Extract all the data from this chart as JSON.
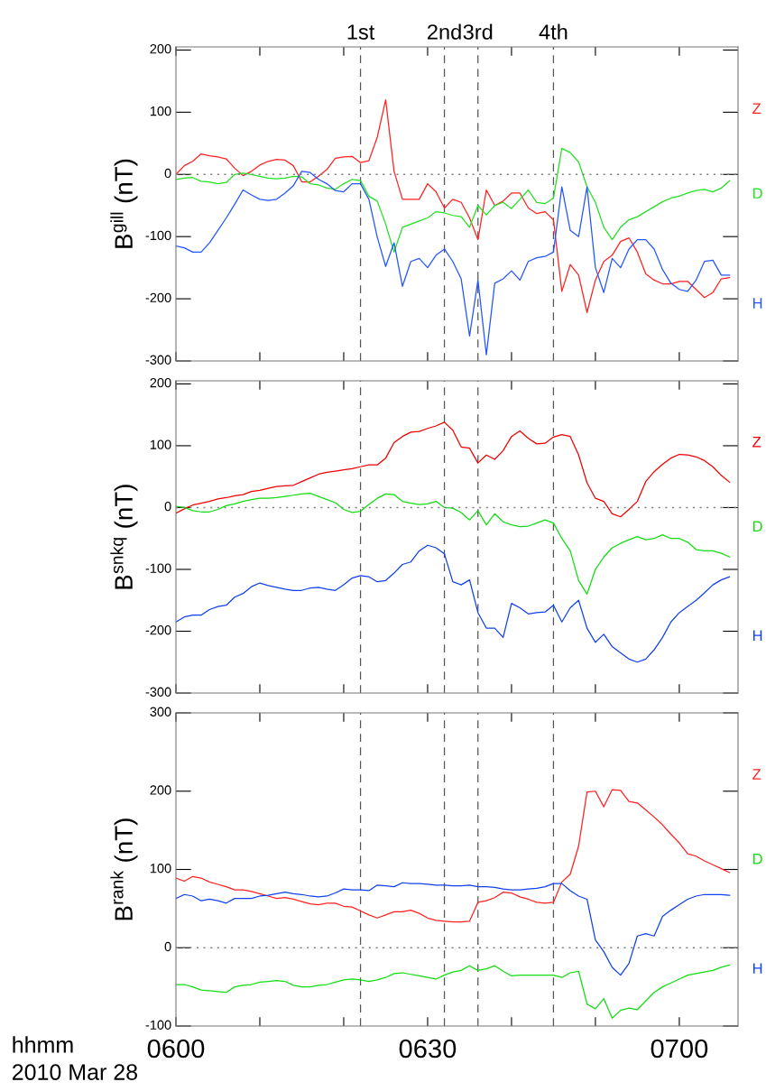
{
  "chart_data": [
    {
      "type": "line",
      "ylabel": "B$^{gill}$ (nT)",
      "tick_labels": "y",
      "x": [
        "2010-03-28T06:00",
        "2010-03-28T06:01",
        "2010-03-28T06:02",
        "2010-03-28T06:03",
        "2010-03-28T06:04",
        "2010-03-28T06:05",
        "2010-03-28T06:06",
        "2010-03-28T06:07",
        "2010-03-28T06:08",
        "2010-03-28T06:09",
        "2010-03-28T06:10",
        "2010-03-28T06:11",
        "2010-03-28T06:12",
        "2010-03-28T06:13",
        "2010-03-28T06:14",
        "2010-03-28T06:15",
        "2010-03-28T06:16",
        "2010-03-28T06:17",
        "2010-03-28T06:18",
        "2010-03-28T06:19",
        "2010-03-28T06:20",
        "2010-03-28T06:21",
        "2010-03-28T06:22",
        "2010-03-28T06:23",
        "2010-03-28T06:24",
        "2010-03-28T06:25",
        "2010-03-28T06:26",
        "2010-03-28T06:27",
        "2010-03-28T06:28",
        "2010-03-28T06:29",
        "2010-03-28T06:30",
        "2010-03-28T06:31",
        "2010-03-28T06:32",
        "2010-03-28T06:33",
        "2010-03-28T06:34",
        "2010-03-28T06:35",
        "2010-03-28T06:36",
        "2010-03-28T06:37",
        "2010-03-28T06:38",
        "2010-03-28T06:39",
        "2010-03-28T06:40",
        "2010-03-28T06:41",
        "2010-03-28T06:42",
        "2010-03-28T06:43",
        "2010-03-28T06:44",
        "2010-03-28T06:45",
        "2010-03-28T06:46",
        "2010-03-28T06:47",
        "2010-03-28T06:48",
        "2010-03-28T06:49",
        "2010-03-28T06:50",
        "2010-03-28T06:51",
        "2010-03-28T06:52",
        "2010-03-28T06:53",
        "2010-03-28T06:54",
        "2010-03-28T06:55",
        "2010-03-28T06:56",
        "2010-03-28T06:57",
        "2010-03-28T06:58",
        "2010-03-28T06:59",
        "2010-03-28T07:00",
        "2010-03-28T07:01",
        "2010-03-28T07:02",
        "2010-03-28T07:03",
        "2010-03-28T07:04",
        "2010-03-28T07:05",
        "2010-03-28T07:06"
      ],
      "series": [
        {
          "name": "Z",
          "color": "#ff2020",
          "values": [
            0,
            14,
            21,
            33,
            30,
            28,
            25,
            10,
            -2,
            5,
            15,
            21,
            24,
            23,
            14,
            -12,
            -12,
            -3,
            8,
            26,
            28,
            29,
            19,
            22,
            60,
            120,
            5,
            -40,
            -40,
            -40,
            -15,
            -28,
            -54,
            -40,
            -45,
            -70,
            -105,
            -25,
            -50,
            -43,
            -30,
            -30,
            -54,
            -63,
            -60,
            -73,
            -188,
            -145,
            -162,
            -222,
            -170,
            -140,
            -130,
            -108,
            -102,
            -125,
            -160,
            -170,
            -176,
            -176,
            -172,
            -172,
            -185,
            -198,
            -190,
            -168,
            -166
          ]
        },
        {
          "name": "D",
          "color": "#22e022",
          "values": [
            -8,
            -6,
            -5,
            -11,
            -12,
            -15,
            -13,
            0,
            2,
            0,
            -3,
            -6,
            -7,
            -6,
            -3,
            -4,
            -15,
            -17,
            -22,
            -24,
            -15,
            -8,
            -10,
            -35,
            -43,
            -80,
            -125,
            -85,
            -80,
            -75,
            -70,
            -60,
            -62,
            -66,
            -68,
            -85,
            -50,
            -65,
            -50,
            -45,
            -55,
            -40,
            -25,
            -45,
            -47,
            -38,
            42,
            35,
            20,
            -20,
            -45,
            -85,
            -105,
            -85,
            -73,
            -68,
            -60,
            -52,
            -44,
            -38,
            -35,
            -30,
            -26,
            -24,
            -28,
            -22,
            -10
          ]
        },
        {
          "name": "H",
          "color": "#2255ff",
          "values": [
            -115,
            -118,
            -125,
            -125,
            -110,
            -90,
            -70,
            -48,
            -25,
            -33,
            -40,
            -42,
            -40,
            -30,
            -18,
            5,
            3,
            -8,
            -15,
            -26,
            -28,
            -15,
            -15,
            -40,
            -101,
            -148,
            -110,
            -180,
            -140,
            -135,
            -150,
            -130,
            -120,
            -140,
            -168,
            -260,
            -170,
            -290,
            -175,
            -168,
            -155,
            -170,
            -140,
            -134,
            -132,
            -125,
            -20,
            -90,
            -100,
            -20,
            -150,
            -190,
            -135,
            -150,
            -120,
            -105,
            -105,
            -120,
            -153,
            -175,
            -185,
            -188,
            -170,
            -140,
            -138,
            -162,
            -162
          ]
        }
      ],
      "xlim": [
        "2010-03-28T06:00",
        "2010-03-28T07:07"
      ],
      "ylim": [
        -300,
        205
      ],
      "xticks": [
        {
          "value": "2010-03-28T06:00",
          "label": null
        },
        {
          "value": "2010-03-28T06:10",
          "label": null
        },
        {
          "value": "2010-03-28T06:20",
          "label": null
        },
        {
          "value": "2010-03-28T06:30",
          "label": null
        },
        {
          "value": "2010-03-28T06:40",
          "label": null
        },
        {
          "value": "2010-03-28T06:50",
          "label": null
        },
        {
          "value": "2010-03-28T07:00",
          "label": null
        }
      ],
      "yticks": [
        -300,
        -200,
        -100,
        0,
        100,
        200
      ],
      "ref_lines": [
        {
          "axis": "y",
          "value": 0,
          "color": "#808080",
          "line_style": "dotted"
        },
        {
          "axis": "x",
          "value": "2010-03-28T06:22",
          "label": "1st",
          "color": "#555555",
          "line_style": "dashed"
        },
        {
          "axis": "x",
          "value": "2010-03-28T06:32",
          "label": "2nd",
          "color": "#555555",
          "line_style": "dashed"
        },
        {
          "axis": "x",
          "value": "2010-03-28T06:36",
          "label": "3rd",
          "color": "#555555",
          "line_style": "dashed"
        },
        {
          "axis": "x",
          "value": "2010-03-28T06:45",
          "label": "4th",
          "color": "#555555",
          "line_style": "dashed"
        }
      ]
    },
    {
      "type": "line",
      "ylabel": "B$^{snkq}$ (nT)",
      "tick_labels": "y",
      "x": [
        "2010-03-28T06:00",
        "2010-03-28T06:01",
        "2010-03-28T06:02",
        "2010-03-28T06:03",
        "2010-03-28T06:04",
        "2010-03-28T06:05",
        "2010-03-28T06:06",
        "2010-03-28T06:07",
        "2010-03-28T06:08",
        "2010-03-28T06:09",
        "2010-03-28T06:10",
        "2010-03-28T06:11",
        "2010-03-28T06:12",
        "2010-03-28T06:13",
        "2010-03-28T06:14",
        "2010-03-28T06:15",
        "2010-03-28T06:16",
        "2010-03-28T06:17",
        "2010-03-28T06:18",
        "2010-03-28T06:19",
        "2010-03-28T06:20",
        "2010-03-28T06:21",
        "2010-03-28T06:22",
        "2010-03-28T06:23",
        "2010-03-28T06:24",
        "2010-03-28T06:25",
        "2010-03-28T06:26",
        "2010-03-28T06:27",
        "2010-03-28T06:28",
        "2010-03-28T06:29",
        "2010-03-28T06:30",
        "2010-03-28T06:31",
        "2010-03-28T06:32",
        "2010-03-28T06:33",
        "2010-03-28T06:34",
        "2010-03-28T06:35",
        "2010-03-28T06:36",
        "2010-03-28T06:37",
        "2010-03-28T06:38",
        "2010-03-28T06:39",
        "2010-03-28T06:40",
        "2010-03-28T06:41",
        "2010-03-28T06:42",
        "2010-03-28T06:43",
        "2010-03-28T06:44",
        "2010-03-28T06:45",
        "2010-03-28T06:46",
        "2010-03-28T06:47",
        "2010-03-28T06:48",
        "2010-03-28T06:49",
        "2010-03-28T06:50",
        "2010-03-28T06:51",
        "2010-03-28T06:52",
        "2010-03-28T06:53",
        "2010-03-28T06:54",
        "2010-03-28T06:55",
        "2010-03-28T06:56",
        "2010-03-28T06:57",
        "2010-03-28T06:58",
        "2010-03-28T06:59",
        "2010-03-28T07:00",
        "2010-03-28T07:01",
        "2010-03-28T07:02",
        "2010-03-28T07:03",
        "2010-03-28T07:04",
        "2010-03-28T07:05",
        "2010-03-28T07:06"
      ],
      "series": [
        {
          "name": "Z",
          "color": "#ee0000",
          "values": [
            -9,
            -2,
            4,
            7,
            10,
            14,
            16,
            19,
            21,
            26,
            28,
            31,
            34,
            35,
            36,
            42,
            48,
            54,
            57,
            59,
            61,
            63,
            66,
            69,
            69,
            80,
            105,
            115,
            122,
            123,
            128,
            132,
            138,
            125,
            98,
            96,
            72,
            85,
            78,
            92,
            115,
            124,
            112,
            103,
            104,
            114,
            118,
            115,
            85,
            40,
            15,
            10,
            -10,
            -15,
            -3,
            10,
            42,
            58,
            70,
            80,
            86,
            85,
            82,
            76,
            66,
            52,
            41
          ]
        },
        {
          "name": "D",
          "color": "#11dd11",
          "values": [
            2,
            0,
            -5,
            -7,
            -7,
            -3,
            3,
            6,
            10,
            13,
            15,
            15,
            16,
            18,
            20,
            22,
            23,
            18,
            13,
            8,
            -3,
            -8,
            -6,
            5,
            15,
            22,
            21,
            10,
            7,
            5,
            6,
            10,
            0,
            -1,
            -8,
            -20,
            -5,
            -28,
            -10,
            -23,
            -28,
            -31,
            -30,
            -25,
            -20,
            -25,
            -50,
            -70,
            -118,
            -140,
            -100,
            -80,
            -65,
            -58,
            -52,
            -47,
            -52,
            -50,
            -44,
            -50,
            -50,
            -56,
            -68,
            -70,
            -70,
            -74,
            -80
          ]
        },
        {
          "name": "H",
          "color": "#1040ee",
          "values": [
            -185,
            -177,
            -174,
            -174,
            -165,
            -160,
            -158,
            -145,
            -139,
            -128,
            -122,
            -126,
            -129,
            -132,
            -134,
            -134,
            -130,
            -129,
            -132,
            -134,
            -125,
            -114,
            -110,
            -112,
            -120,
            -118,
            -106,
            -92,
            -88,
            -70,
            -61,
            -65,
            -75,
            -120,
            -125,
            -117,
            -170,
            -195,
            -195,
            -210,
            -155,
            -162,
            -172,
            -170,
            -169,
            -158,
            -185,
            -162,
            -150,
            -195,
            -218,
            -205,
            -225,
            -235,
            -245,
            -250,
            -245,
            -230,
            -210,
            -185,
            -170,
            -160,
            -150,
            -138,
            -125,
            -117,
            -112
          ]
        }
      ],
      "xlim": [
        "2010-03-28T06:00",
        "2010-03-28T07:07"
      ],
      "ylim": [
        -300,
        205
      ],
      "xticks": [
        {
          "value": "2010-03-28T06:00",
          "label": null
        },
        {
          "value": "2010-03-28T06:10",
          "label": null
        },
        {
          "value": "2010-03-28T06:20",
          "label": null
        },
        {
          "value": "2010-03-28T06:30",
          "label": null
        },
        {
          "value": "2010-03-28T06:40",
          "label": null
        },
        {
          "value": "2010-03-28T06:50",
          "label": null
        },
        {
          "value": "2010-03-28T07:00",
          "label": null
        }
      ],
      "yticks": [
        -300,
        -200,
        -100,
        0,
        100,
        200
      ],
      "ref_lines": [
        {
          "axis": "y",
          "value": 0,
          "color": "#808080",
          "line_style": "dotted"
        },
        {
          "axis": "x",
          "value": "2010-03-28T06:22",
          "color": "#555555",
          "line_style": "dashed"
        },
        {
          "axis": "x",
          "value": "2010-03-28T06:32",
          "color": "#555555",
          "line_style": "dashed"
        },
        {
          "axis": "x",
          "value": "2010-03-28T06:36",
          "color": "#555555",
          "line_style": "dashed"
        },
        {
          "axis": "x",
          "value": "2010-03-28T06:45",
          "color": "#555555",
          "line_style": "dashed"
        }
      ]
    },
    {
      "type": "line",
      "ylabel": "B$^{rank}$ (nT)",
      "annotations": [
        "hhmm",
        "2010 Mar 28"
      ],
      "x": [
        "2010-03-28T06:00",
        "2010-03-28T06:01",
        "2010-03-28T06:02",
        "2010-03-28T06:03",
        "2010-03-28T06:04",
        "2010-03-28T06:05",
        "2010-03-28T06:06",
        "2010-03-28T06:07",
        "2010-03-28T06:08",
        "2010-03-28T06:09",
        "2010-03-28T06:10",
        "2010-03-28T06:11",
        "2010-03-28T06:12",
        "2010-03-28T06:13",
        "2010-03-28T06:14",
        "2010-03-28T06:15",
        "2010-03-28T06:16",
        "2010-03-28T06:17",
        "2010-03-28T06:18",
        "2010-03-28T06:19",
        "2010-03-28T06:20",
        "2010-03-28T06:21",
        "2010-03-28T06:22",
        "2010-03-28T06:23",
        "2010-03-28T06:24",
        "2010-03-28T06:25",
        "2010-03-28T06:26",
        "2010-03-28T06:27",
        "2010-03-28T06:28",
        "2010-03-28T06:29",
        "2010-03-28T06:30",
        "2010-03-28T06:31",
        "2010-03-28T06:32",
        "2010-03-28T06:33",
        "2010-03-28T06:34",
        "2010-03-28T06:35",
        "2010-03-28T06:36",
        "2010-03-28T06:37",
        "2010-03-28T06:38",
        "2010-03-28T06:39",
        "2010-03-28T06:40",
        "2010-03-28T06:41",
        "2010-03-28T06:42",
        "2010-03-28T06:43",
        "2010-03-28T06:44",
        "2010-03-28T06:45",
        "2010-03-28T06:46",
        "2010-03-28T06:47",
        "2010-03-28T06:48",
        "2010-03-28T06:49",
        "2010-03-28T06:50",
        "2010-03-28T06:51",
        "2010-03-28T06:52",
        "2010-03-28T06:53",
        "2010-03-28T06:54",
        "2010-03-28T06:55",
        "2010-03-28T06:56",
        "2010-03-28T06:57",
        "2010-03-28T06:58",
        "2010-03-28T06:59",
        "2010-03-28T07:00",
        "2010-03-28T07:01",
        "2010-03-28T07:02",
        "2010-03-28T07:03",
        "2010-03-28T07:04",
        "2010-03-28T07:05",
        "2010-03-28T07:06"
      ],
      "series": [
        {
          "name": "Z",
          "color": "#ff2020",
          "values": [
            89,
            85,
            91,
            89,
            84,
            81,
            78,
            74,
            74,
            72,
            69,
            66,
            63,
            64,
            62,
            59,
            56,
            55,
            57,
            57,
            53,
            52,
            47,
            42,
            38,
            42,
            46,
            46,
            48,
            44,
            38,
            35,
            34,
            33,
            33,
            34,
            58,
            60,
            64,
            71,
            70,
            65,
            62,
            58,
            57,
            58,
            84,
            94,
            130,
            199,
            200,
            180,
            202,
            201,
            187,
            185,
            176,
            167,
            157,
            145,
            134,
            120,
            117,
            111,
            106,
            101,
            96
          ]
        },
        {
          "name": "D",
          "color": "#11dd11",
          "values": [
            -47,
            -47,
            -50,
            -54,
            -55,
            -56,
            -57,
            -50,
            -48,
            -47,
            -44,
            -43,
            -42,
            -43,
            -48,
            -50,
            -50,
            -48,
            -47,
            -44,
            -41,
            -40,
            -41,
            -43,
            -41,
            -38,
            -33,
            -32,
            -34,
            -36,
            -38,
            -40,
            -35,
            -31,
            -29,
            -23,
            -29,
            -27,
            -23,
            -30,
            -36,
            -35,
            -35,
            -35,
            -35,
            -35,
            -38,
            -32,
            -30,
            -72,
            -78,
            -65,
            -90,
            -80,
            -77,
            -79,
            -68,
            -57,
            -50,
            -45,
            -40,
            -35,
            -33,
            -31,
            -29,
            -25,
            -22
          ]
        },
        {
          "name": "H",
          "color": "#1040ee",
          "values": [
            63,
            68,
            66,
            60,
            62,
            60,
            57,
            63,
            63,
            63,
            66,
            67,
            69,
            71,
            69,
            68,
            66,
            65,
            66,
            70,
            75,
            74,
            74,
            73,
            80,
            79,
            78,
            83,
            82,
            82,
            81,
            80,
            80,
            79,
            79,
            80,
            78,
            78,
            77,
            75,
            74,
            74,
            75,
            76,
            78,
            82,
            82,
            73,
            66,
            62,
            10,
            -5,
            -25,
            -35,
            -20,
            15,
            18,
            15,
            40,
            48,
            55,
            62,
            66,
            68,
            68,
            68,
            67
          ]
        }
      ],
      "xlim": [
        "2010-03-28T06:00",
        "2010-03-28T07:07"
      ],
      "ylim": [
        -100,
        300
      ],
      "xticks": [
        {
          "value": "2010-03-28T06:00",
          "label": "0600"
        },
        {
          "value": "2010-03-28T06:10",
          "label": null
        },
        {
          "value": "2010-03-28T06:20",
          "label": null
        },
        {
          "value": "2010-03-28T06:30",
          "label": "0630"
        },
        {
          "value": "2010-03-28T06:40",
          "label": null
        },
        {
          "value": "2010-03-28T06:50",
          "label": null
        },
        {
          "value": "2010-03-28T07:00",
          "label": "0700"
        }
      ],
      "yticks": [
        -100,
        0,
        100,
        200,
        300
      ],
      "ref_lines": [
        {
          "axis": "y",
          "value": 0,
          "color": "#808080",
          "line_style": "dotted"
        },
        {
          "axis": "x",
          "value": "2010-03-28T06:22",
          "color": "#555555",
          "line_style": "dashed"
        },
        {
          "axis": "x",
          "value": "2010-03-28T06:32",
          "color": "#555555",
          "line_style": "dashed"
        },
        {
          "axis": "x",
          "value": "2010-03-28T06:36",
          "color": "#555555",
          "line_style": "dashed"
        },
        {
          "axis": "x",
          "value": "2010-03-28T06:45",
          "color": "#555555",
          "line_style": "dashed"
        }
      ]
    }
  ]
}
